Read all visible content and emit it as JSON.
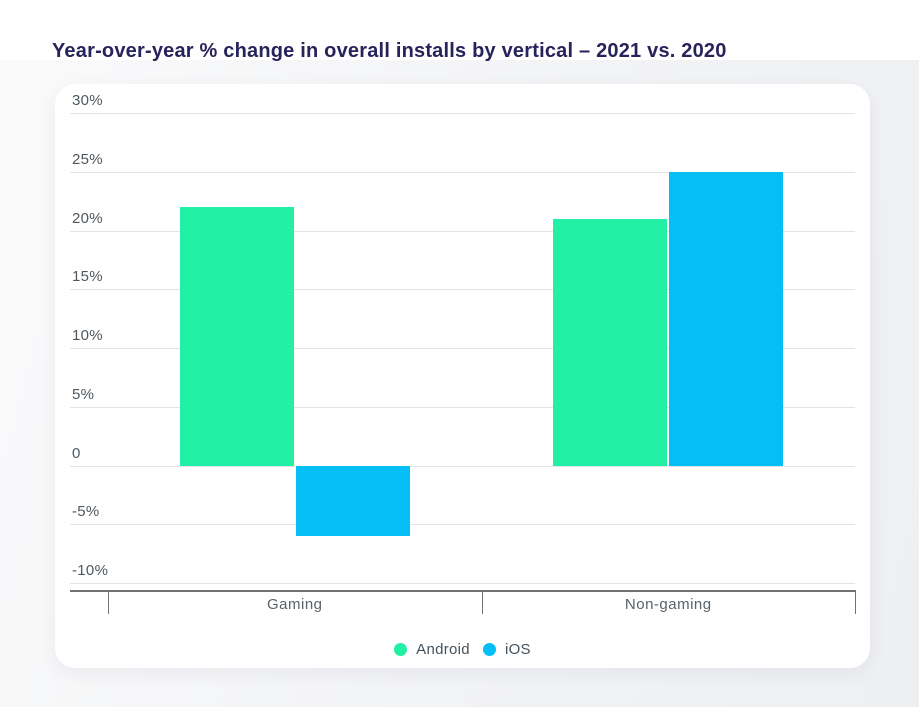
{
  "page": {
    "title": "Year-over-year % change in overall installs by vertical – 2021 vs. 2020",
    "title_color": "#29235c",
    "background_color": "#f2f3f5",
    "card_color": "#ffffff"
  },
  "chart_data": {
    "type": "bar",
    "title": "Year-over-year % change in overall installs by vertical – 2021 vs. 2020",
    "categories": [
      "Gaming",
      "Non-gaming"
    ],
    "series": [
      {
        "name": "Android",
        "color": "#22f1a5",
        "values": [
          22,
          21
        ]
      },
      {
        "name": "iOS",
        "color": "#04bef5",
        "values": [
          -6,
          25
        ]
      }
    ],
    "xlabel": "",
    "ylabel": "",
    "ylim": [
      -10,
      30
    ],
    "y_ticks": [
      {
        "label": "30%",
        "value": 30
      },
      {
        "label": "25%",
        "value": 25
      },
      {
        "label": "20%",
        "value": 20
      },
      {
        "label": "15%",
        "value": 15
      },
      {
        "label": "10%",
        "value": 10
      },
      {
        "label": "5%",
        "value": 5
      },
      {
        "label": "0",
        "value": 0
      },
      {
        "label": "-5%",
        "value": -5
      },
      {
        "label": "-10%",
        "value": -10
      }
    ],
    "grid": true,
    "legend_position": "bottom"
  }
}
